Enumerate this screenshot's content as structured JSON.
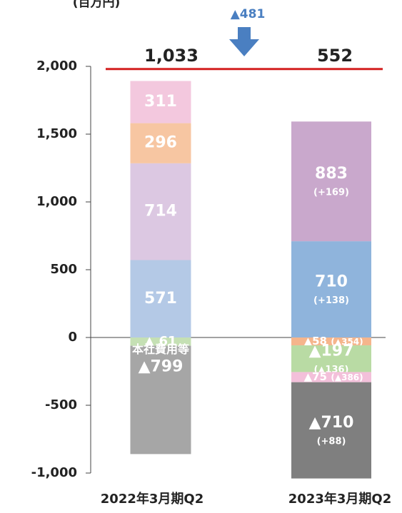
{
  "chart_data": {
    "type": "stacked_bar",
    "unit_label": "(百万円)",
    "categories": [
      "2022年3月期Q2",
      "2023年3月期Q2"
    ],
    "series": [
      {
        "colors": [
          "#b4c9e6",
          "#8fb4dc"
        ],
        "values": [
          571,
          710
        ],
        "value_labels": [
          "571",
          "710"
        ],
        "sub_labels": [
          null,
          "(+138)"
        ]
      },
      {
        "colors": [
          "#dcc8e2",
          "#c9a8cc"
        ],
        "values": [
          714,
          883
        ],
        "value_labels": [
          "714",
          "883"
        ],
        "sub_labels": [
          null,
          "(+169)"
        ]
      },
      {
        "colors": [
          "#f7c6a2",
          "#f5b58c"
        ],
        "values": [
          296,
          -58
        ],
        "value_labels": [
          "296",
          "▲58"
        ],
        "sub_labels": [
          null,
          "(▲354)"
        ]
      },
      {
        "colors": [
          "#c5e0b4",
          "#b9dba4"
        ],
        "values": [
          -61,
          -197
        ],
        "value_labels": [
          "▲ 61",
          "▲197"
        ],
        "sub_labels": [
          null,
          "(▲136)"
        ]
      },
      {
        "colors": [
          "#f3c8de",
          "#f3c0da"
        ],
        "values": [
          311,
          -75
        ],
        "value_labels": [
          "311",
          "▲75"
        ],
        "sub_labels": [
          null,
          "(▲386)"
        ]
      },
      {
        "colors": [
          "#a6a6a6",
          "#7f7f7f"
        ],
        "values": [
          -799,
          -710
        ],
        "value_labels": [
          "▲799",
          "▲710"
        ],
        "sub_labels": [
          null,
          "(+88)"
        ],
        "pre_labels": [
          "本社費用等",
          null
        ]
      }
    ],
    "totals": [
      "1,033",
      "552"
    ],
    "change_label": "▲481",
    "change_color": "#4a7fc1",
    "reference_line": {
      "value": 1980,
      "color": "#d42020"
    },
    "ylim": [
      -1000,
      2000
    ],
    "yticks": [
      {
        "value": 2000,
        "label": "2,000"
      },
      {
        "value": 1500,
        "label": "1,500"
      },
      {
        "value": 1000,
        "label": "1,000"
      },
      500,
      0,
      -500,
      {
        "value": -1000,
        "label": "-1,000"
      }
    ]
  }
}
